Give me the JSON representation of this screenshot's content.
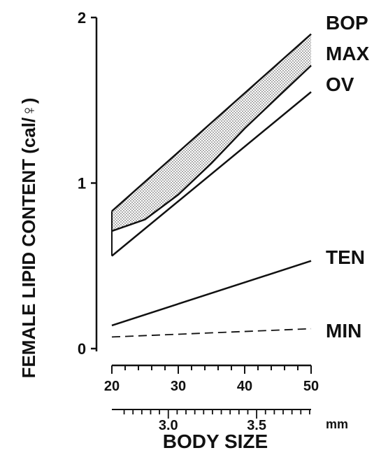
{
  "chart_data": {
    "type": "line",
    "title": "",
    "ylabel": "FEMALE LIPID CONTENT (cal/♀)",
    "xlabel": "BODY SIZE",
    "ylim": [
      0,
      2
    ],
    "xlim": [
      20,
      50
    ],
    "y_ticks": [
      {
        "value": 0,
        "label": "0"
      },
      {
        "value": 1,
        "label": "1"
      },
      {
        "value": 2,
        "label": "2"
      }
    ],
    "x_ticks": [
      {
        "value": 20,
        "label": "20"
      },
      {
        "value": 30,
        "label": "30"
      },
      {
        "value": 40,
        "label": "40"
      },
      {
        "value": 50,
        "label": "50"
      }
    ],
    "x2_ticks": [
      {
        "value": 28.5,
        "label": "3.0"
      },
      {
        "value": 41.8,
        "label": "3.5"
      }
    ],
    "x2_unit": "mm",
    "series": [
      {
        "name": "BOP",
        "x": [
          20,
          50
        ],
        "y": [
          0.83,
          1.9
        ],
        "style": "solid"
      },
      {
        "name": "MAX",
        "x": [
          20,
          25,
          30,
          35,
          40,
          45,
          50
        ],
        "y": [
          0.71,
          0.78,
          0.93,
          1.12,
          1.33,
          1.52,
          1.71
        ],
        "style": "solid"
      },
      {
        "name": "OV",
        "x": [
          20,
          50
        ],
        "y": [
          0.56,
          1.55
        ],
        "style": "solid"
      },
      {
        "name": "TEN",
        "x": [
          20,
          50
        ],
        "y": [
          0.14,
          0.53
        ],
        "style": "solid"
      },
      {
        "name": "MIN",
        "x": [
          20,
          50
        ],
        "y": [
          0.07,
          0.12
        ],
        "style": "dashed"
      }
    ],
    "bands": [
      {
        "upper": "BOP",
        "lower": "MAX",
        "fill": "stippled"
      },
      {
        "between": [
          "MAX",
          "OV"
        ],
        "fill": "hatched-then-dark-stipple"
      }
    ],
    "grid": false,
    "legend": "right-side labels"
  }
}
